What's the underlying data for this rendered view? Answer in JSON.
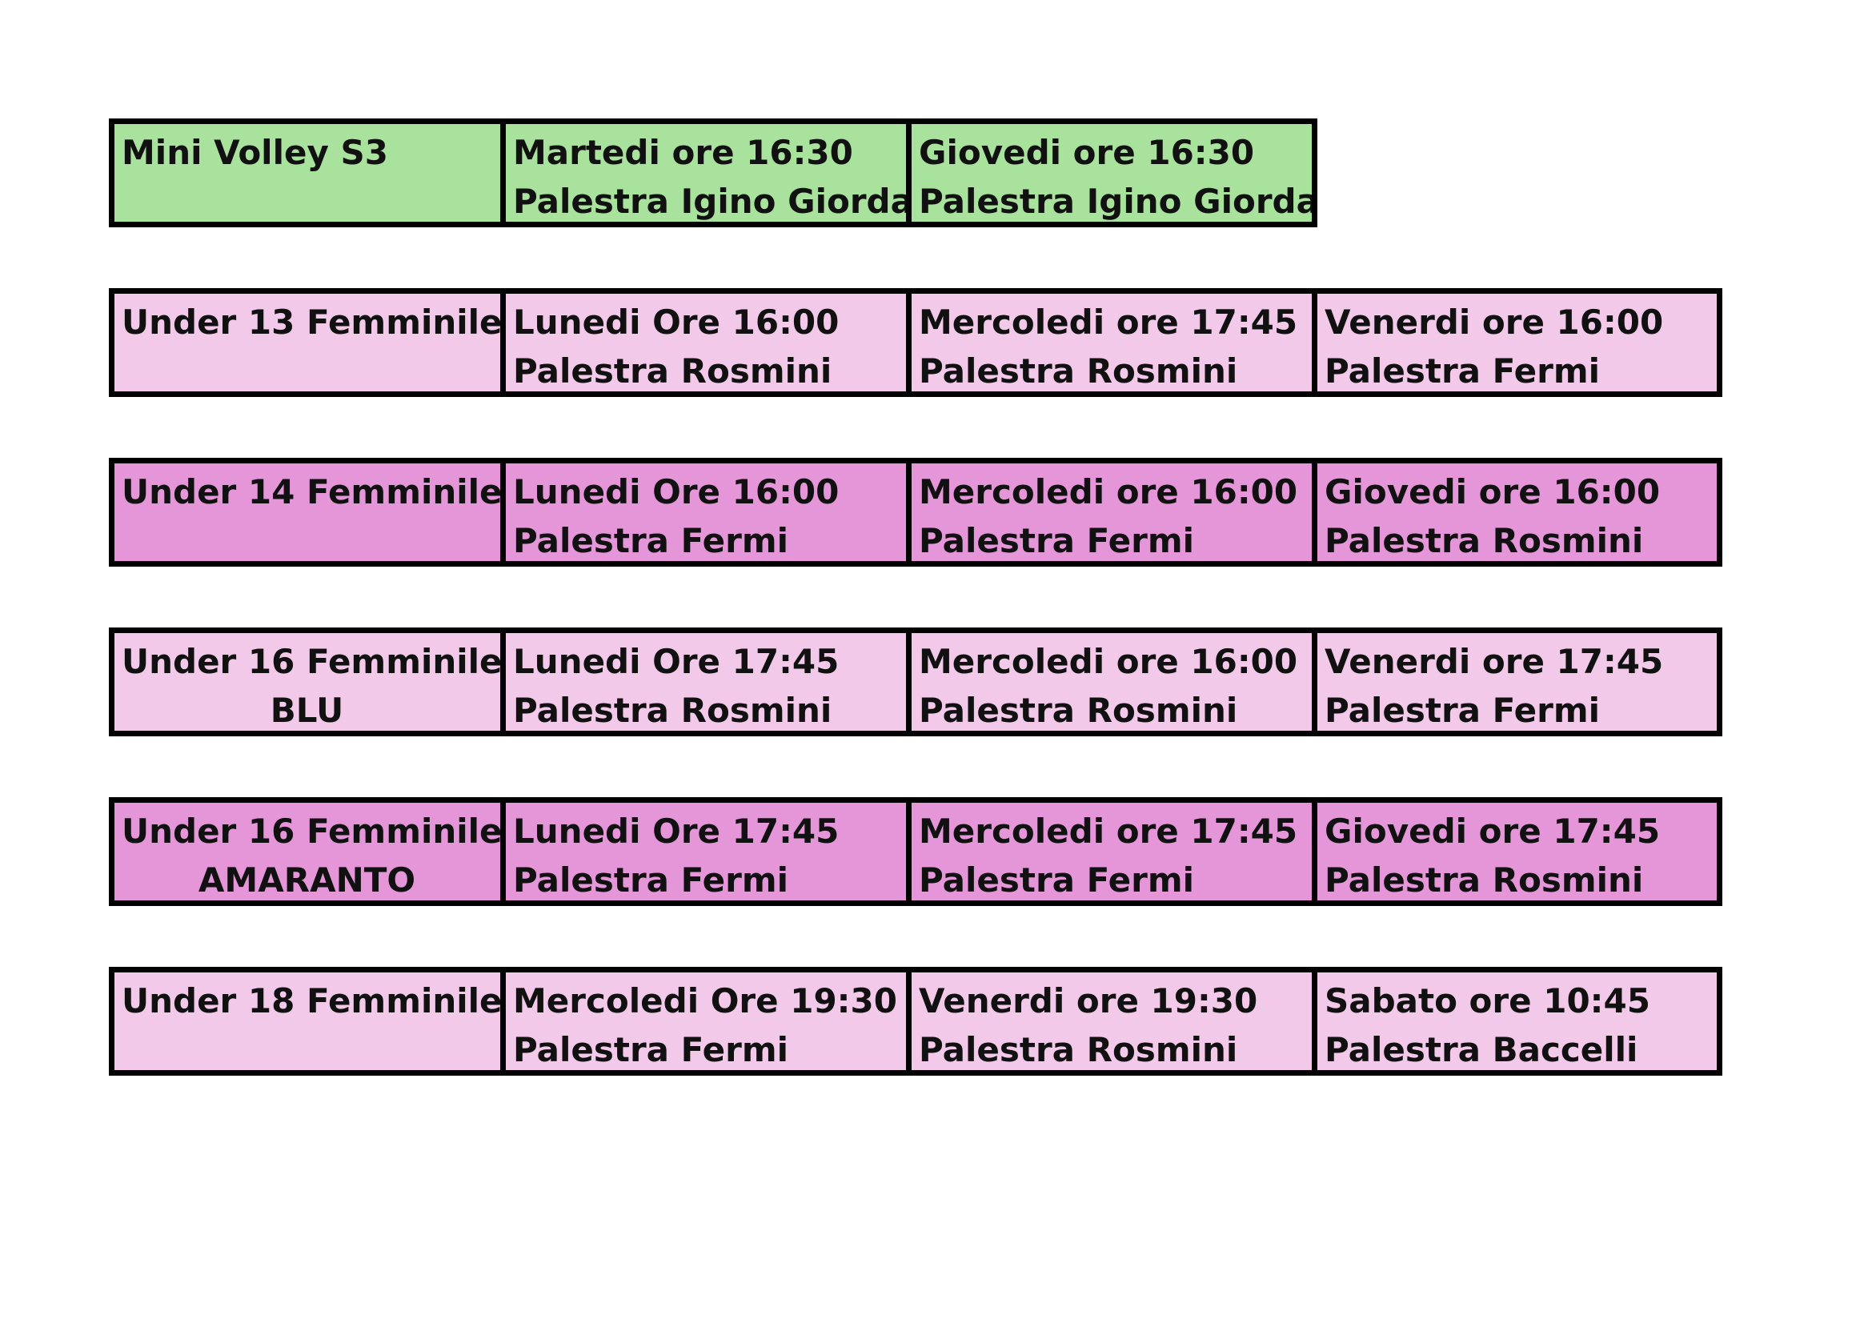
{
  "rows": [
    {
      "team": [
        "Mini Volley S3"
      ],
      "color": "#a9e29c",
      "slots": [
        [
          "Martedi ore 16:30",
          "Palestra Igino Giordani"
        ],
        [
          "Giovedi ore 16:30",
          "Palestra Igino Giordani"
        ]
      ]
    },
    {
      "team": [
        "Under 13 Femminile"
      ],
      "color": "#f2c9e9",
      "slots": [
        [
          "Lunedi Ore 16:00",
          "Palestra Rosmini"
        ],
        [
          "Mercoledi ore 17:45",
          "Palestra Rosmini"
        ],
        [
          "Venerdi ore 16:00",
          "Palestra Fermi"
        ]
      ]
    },
    {
      "team": [
        "Under 14 Femminile"
      ],
      "color": "#e496d9",
      "slots": [
        [
          "Lunedi Ore 16:00",
          "Palestra Fermi"
        ],
        [
          "Mercoledi ore 16:00",
          "Palestra Fermi"
        ],
        [
          "Giovedi ore 16:00",
          "Palestra Rosmini"
        ]
      ]
    },
    {
      "team": [
        "Under 16 Femminile",
        "BLU"
      ],
      "color": "#f2c9e9",
      "slots": [
        [
          "Lunedi Ore 17:45",
          "Palestra Rosmini"
        ],
        [
          "Mercoledi ore 16:00",
          "Palestra Rosmini"
        ],
        [
          "Venerdi ore 17:45",
          "Palestra Fermi"
        ]
      ]
    },
    {
      "team": [
        "Under 16 Femminile",
        "AMARANTO"
      ],
      "color": "#e496d9",
      "slots": [
        [
          "Lunedi Ore 17:45",
          "Palestra Fermi"
        ],
        [
          "Mercoledi ore 17:45",
          "Palestra Fermi"
        ],
        [
          "Giovedi ore 17:45",
          "Palestra Rosmini"
        ]
      ]
    },
    {
      "team": [
        "Under 18 Femminile"
      ],
      "color": "#f2c9e9",
      "slots": [
        [
          "Mercoledi Ore 19:30",
          "Palestra Fermi"
        ],
        [
          "Venerdi ore 19:30",
          "Palestra Rosmini"
        ],
        [
          "Sabato ore 10:45",
          "Palestra Baccelli"
        ]
      ]
    }
  ]
}
